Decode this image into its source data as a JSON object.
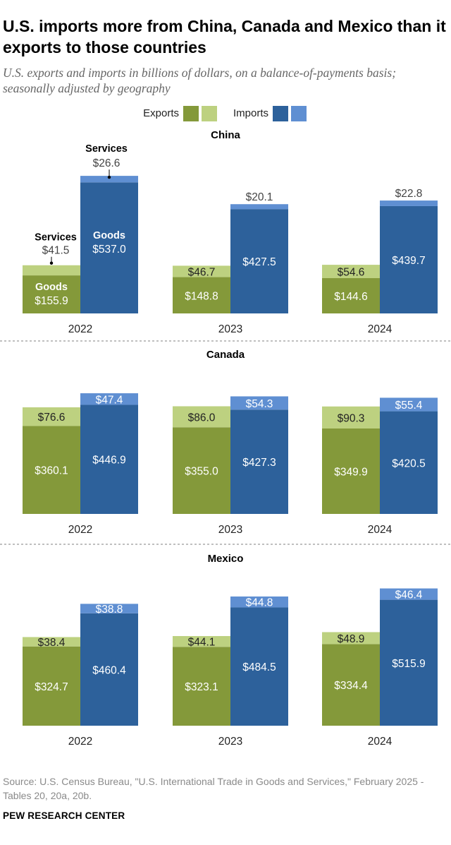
{
  "title": "U.S. imports more from China, Canada and Mexico than it exports to those countries",
  "subtitle": "U.S. exports and imports in billions of dollars, on a balance-of-payments basis; seasonally adjusted by geography",
  "source": "Source: U.S. Census Bureau, \"U.S. International Trade in Goods and Services,\" February 2025 - Tables 20, 20a, 20b.",
  "brand": "PEW RESEARCH CENTER",
  "colors": {
    "exports_goods": "#84993a",
    "exports_services": "#bdd180",
    "imports_goods": "#2d619b",
    "imports_services": "#5f8fd2"
  },
  "chart_data": {
    "type": "bar",
    "stacked": true,
    "legend": {
      "exports": "Exports",
      "imports": "Imports",
      "position": "top"
    },
    "annotations": {
      "services": "Services",
      "goods": "Goods"
    },
    "categories": [
      "2022",
      "2023",
      "2024"
    ],
    "panels": [
      {
        "country": "China",
        "exports_goods": [
          155.9,
          148.8,
          144.6
        ],
        "exports_services": [
          41.5,
          46.7,
          54.6
        ],
        "imports_goods": [
          537.0,
          427.5,
          439.7
        ],
        "imports_services": [
          26.6,
          20.1,
          22.8
        ],
        "labels": {
          "exports_goods": [
            "$155.9",
            "$148.8",
            "$144.6"
          ],
          "exports_services": [
            "$41.5",
            "$46.7",
            "$54.6"
          ],
          "imports_goods": [
            "$537.0",
            "$427.5",
            "$439.7"
          ],
          "imports_services": [
            "$26.6",
            "$20.1",
            "$22.8"
          ]
        }
      },
      {
        "country": "Canada",
        "exports_goods": [
          360.1,
          355.0,
          349.9
        ],
        "exports_services": [
          76.6,
          86.0,
          90.3
        ],
        "imports_goods": [
          446.9,
          427.3,
          420.5
        ],
        "imports_services": [
          47.4,
          54.3,
          55.4
        ],
        "labels": {
          "exports_goods": [
            "$360.1",
            "$355.0",
            "$349.9"
          ],
          "exports_services": [
            "$76.6",
            "$86.0",
            "$90.3"
          ],
          "imports_goods": [
            "$446.9",
            "$427.3",
            "$420.5"
          ],
          "imports_services": [
            "$47.4",
            "$54.3",
            "$55.4"
          ]
        }
      },
      {
        "country": "Mexico",
        "exports_goods": [
          324.7,
          323.1,
          334.4
        ],
        "exports_services": [
          38.4,
          44.1,
          48.9
        ],
        "imports_goods": [
          460.4,
          484.5,
          515.9
        ],
        "imports_services": [
          38.8,
          44.8,
          46.4
        ],
        "labels": {
          "exports_goods": [
            "$324.7",
            "$323.1",
            "$334.4"
          ],
          "exports_services": [
            "$38.4",
            "$44.1",
            "$48.9"
          ],
          "imports_goods": [
            "$460.4",
            "$484.5",
            "$515.9"
          ],
          "imports_services": [
            "$38.8",
            "$44.8",
            "$46.4"
          ]
        }
      }
    ]
  }
}
